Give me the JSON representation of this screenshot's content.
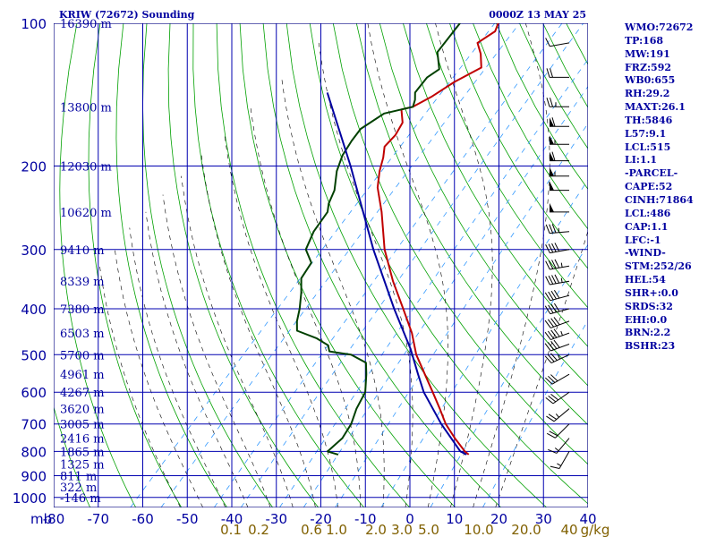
{
  "header": {
    "title": "KRIW (72672) Sounding",
    "valid_time": "0000Z 13 MAY 25"
  },
  "stats": [
    "WMO:72672",
    "TP:168",
    "MW:191",
    "FRZ:592",
    "WB0:655",
    "RH:29.2",
    "MAXT:26.1",
    "TH:5846",
    "L57:9.1",
    "LCL:515",
    "LI:1.1",
    "-PARCEL-",
    "CAPE:52",
    "CINH:71864",
    "LCL:486",
    "CAP:1.1",
    "LFC:-1",
    "-WIND-",
    "STM:252/26",
    "HEL:54",
    "SHR+:0.0",
    "SRDS:32",
    "EHI:0.0",
    "BRN:2.2",
    "BSHR:23"
  ],
  "colors": {
    "frame": "#000080",
    "grid": "#0000b0",
    "dry_adiabat": "#00a000",
    "moist_adiabat": "#000000",
    "mixing_ratio": "#3399ff",
    "temperature": "#c00000",
    "dewpoint": "#004000",
    "parcel": "#0000a0",
    "labels": "#0000a0",
    "mixing_ratio_labels": "#806000"
  },
  "chart_data": {
    "type": "skew-t",
    "x_unit_label": "mb",
    "pressure_ticks": [
      100,
      200,
      300,
      400,
      500,
      600,
      700,
      800,
      900,
      1000
    ],
    "temperature_ticks": [
      -80,
      -70,
      -60,
      -50,
      -40,
      -30,
      -20,
      -10,
      0,
      10,
      20,
      30,
      40
    ],
    "ylim": [
      100,
      1050
    ],
    "height_labels": [
      {
        "p": 100,
        "label": "16390 m"
      },
      {
        "p": 150,
        "label": "13800 m"
      },
      {
        "p": 200,
        "label": "12030 m"
      },
      {
        "p": 250,
        "label": "10620 m"
      },
      {
        "p": 300,
        "label": "9410 m"
      },
      {
        "p": 350,
        "label": "8339 m"
      },
      {
        "p": 400,
        "label": "7380 m"
      },
      {
        "p": 450,
        "label": "6503 m"
      },
      {
        "p": 500,
        "label": "5700 m"
      },
      {
        "p": 550,
        "label": "4961 m"
      },
      {
        "p": 600,
        "label": "4267 m"
      },
      {
        "p": 650,
        "label": "3620 m"
      },
      {
        "p": 700,
        "label": "3005 m"
      },
      {
        "p": 750,
        "label": "2416 m"
      },
      {
        "p": 800,
        "label": "1865 m"
      },
      {
        "p": 850,
        "label": "1325 m"
      },
      {
        "p": 900,
        "label": "811 m"
      },
      {
        "p": 950,
        "label": "322 m"
      },
      {
        "p": 1000,
        "label": "-146 m"
      }
    ],
    "mixing_ratio_labels": [
      "0.1",
      "0.2",
      "0.6",
      "1.0",
      "2.0",
      "3.0",
      "5.0",
      "10.0",
      "20.0",
      "40",
      "g/kg"
    ],
    "mixing_ratio_values": [
      0.1,
      0.2,
      0.6,
      1.0,
      2.0,
      3.0,
      5.0,
      10.0,
      20.0,
      40
    ],
    "series": [
      {
        "name": "temperature",
        "points": [
          [
            100,
            -60.5
          ],
          [
            104,
            -59.5
          ],
          [
            110,
            -61
          ],
          [
            116,
            -58
          ],
          [
            124,
            -55
          ],
          [
            133,
            -58
          ],
          [
            143,
            -60
          ],
          [
            150,
            -62
          ],
          [
            152,
            -64
          ],
          [
            162,
            -61
          ],
          [
            172,
            -60
          ],
          [
            182,
            -60
          ],
          [
            192,
            -58
          ],
          [
            205,
            -56
          ],
          [
            222,
            -53
          ],
          [
            250,
            -47
          ],
          [
            300,
            -38.5
          ],
          [
            350,
            -30
          ],
          [
            400,
            -22
          ],
          [
            450,
            -15
          ],
          [
            500,
            -9.5
          ],
          [
            550,
            -3.5
          ],
          [
            600,
            2
          ],
          [
            650,
            7
          ],
          [
            700,
            11.5
          ],
          [
            750,
            16.5
          ],
          [
            800,
            21.5
          ],
          [
            812,
            23
          ]
        ]
      },
      {
        "name": "dewpoint",
        "points": [
          [
            100,
            -69
          ],
          [
            115,
            -68
          ],
          [
            125,
            -64
          ],
          [
            130,
            -65
          ],
          [
            140,
            -64.5
          ],
          [
            145,
            -63
          ],
          [
            150,
            -62
          ],
          [
            155,
            -67
          ],
          [
            167,
            -69
          ],
          [
            177,
            -68.5
          ],
          [
            190,
            -67.5
          ],
          [
            205,
            -65.5
          ],
          [
            225,
            -62
          ],
          [
            240,
            -60.5
          ],
          [
            250,
            -59
          ],
          [
            275,
            -58
          ],
          [
            300,
            -56
          ],
          [
            320,
            -52
          ],
          [
            345,
            -51
          ],
          [
            370,
            -48
          ],
          [
            400,
            -45
          ],
          [
            425,
            -43
          ],
          [
            445,
            -41
          ],
          [
            462,
            -35
          ],
          [
            478,
            -31
          ],
          [
            492,
            -29.5
          ],
          [
            500,
            -24
          ],
          [
            520,
            -19
          ],
          [
            550,
            -16.5
          ],
          [
            600,
            -13
          ],
          [
            650,
            -11.5
          ],
          [
            700,
            -9.5
          ],
          [
            750,
            -8.5
          ],
          [
            800,
            -9
          ],
          [
            812,
            -6
          ]
        ]
      },
      {
        "name": "parcel",
        "points": [
          [
            140,
            -84
          ],
          [
            200,
            -63.5
          ],
          [
            300,
            -41
          ],
          [
            400,
            -24
          ],
          [
            486,
            -12
          ],
          [
            550,
            -5
          ],
          [
            600,
            0
          ],
          [
            700,
            10.5
          ],
          [
            800,
            20.5
          ],
          [
            812,
            22.5
          ]
        ]
      }
    ],
    "wind_barbs": [
      {
        "p": 110,
        "dir": 260,
        "spd": 10
      },
      {
        "p": 130,
        "dir": 270,
        "spd": 20
      },
      {
        "p": 150,
        "dir": 270,
        "spd": 25
      },
      {
        "p": 165,
        "dir": 270,
        "spd": 60
      },
      {
        "p": 180,
        "dir": 270,
        "spd": 55
      },
      {
        "p": 195,
        "dir": 270,
        "spd": 60
      },
      {
        "p": 210,
        "dir": 270,
        "spd": 55
      },
      {
        "p": 225,
        "dir": 270,
        "spd": 50
      },
      {
        "p": 250,
        "dir": 270,
        "spd": 50
      },
      {
        "p": 275,
        "dir": 265,
        "spd": 35
      },
      {
        "p": 300,
        "dir": 260,
        "spd": 40
      },
      {
        "p": 325,
        "dir": 260,
        "spd": 45
      },
      {
        "p": 350,
        "dir": 260,
        "spd": 45
      },
      {
        "p": 375,
        "dir": 255,
        "spd": 40
      },
      {
        "p": 400,
        "dir": 255,
        "spd": 40
      },
      {
        "p": 425,
        "dir": 250,
        "spd": 40
      },
      {
        "p": 450,
        "dir": 250,
        "spd": 45
      },
      {
        "p": 475,
        "dir": 250,
        "spd": 40
      },
      {
        "p": 500,
        "dir": 245,
        "spd": 35
      },
      {
        "p": 550,
        "dir": 240,
        "spd": 30
      },
      {
        "p": 600,
        "dir": 235,
        "spd": 30
      },
      {
        "p": 650,
        "dir": 230,
        "spd": 25
      },
      {
        "p": 700,
        "dir": 225,
        "spd": 20
      },
      {
        "p": 750,
        "dir": 220,
        "spd": 15
      },
      {
        "p": 800,
        "dir": 210,
        "spd": 15
      }
    ]
  }
}
